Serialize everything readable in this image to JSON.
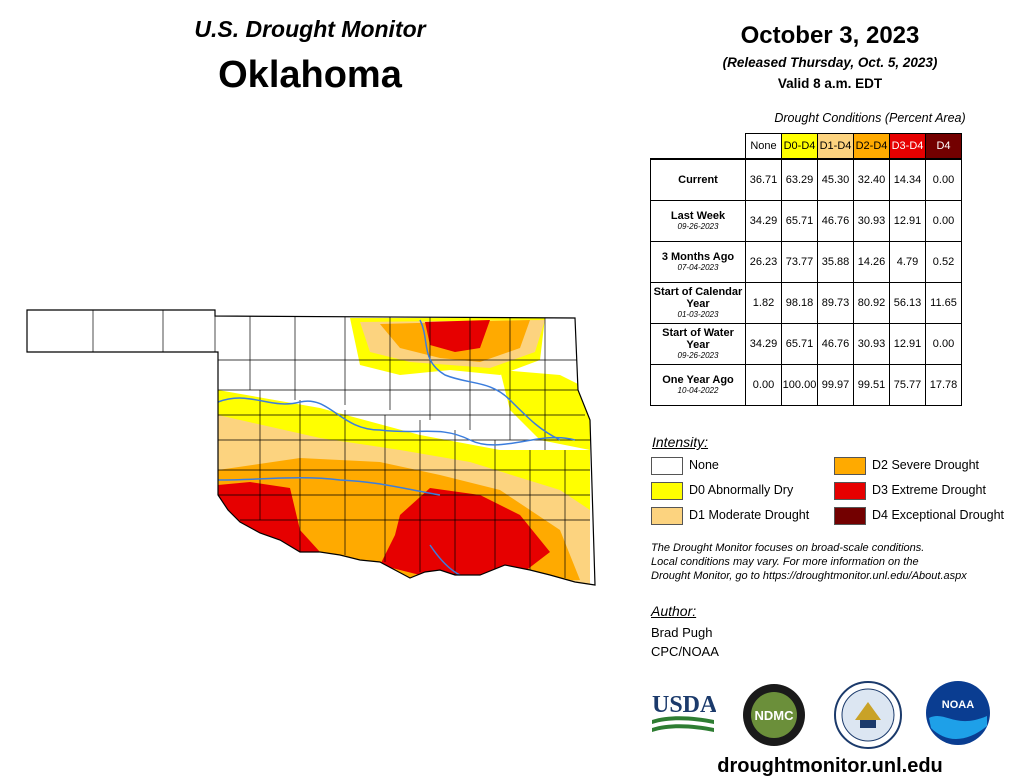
{
  "header": {
    "product": "U.S. Drought Monitor",
    "state": "Oklahoma",
    "date": "October 3, 2023",
    "released": "(Released Thursday, Oct. 5, 2023)",
    "valid": "Valid 8 a.m. EDT"
  },
  "table": {
    "caption": "Drought Conditions (Percent Area)",
    "columns": [
      {
        "label": "None",
        "color": "#ffffff",
        "text_color": "#000000"
      },
      {
        "label": "D0-D4",
        "color": "#ffff00",
        "text_color": "#000000"
      },
      {
        "label": "D1-D4",
        "color": "#fcd37f",
        "text_color": "#000000"
      },
      {
        "label": "D2-D4",
        "color": "#ffaa00",
        "text_color": "#000000"
      },
      {
        "label": "D3-D4",
        "color": "#e60000",
        "text_color": "#ffffff"
      },
      {
        "label": "D4",
        "color": "#730000",
        "text_color": "#ffffff"
      }
    ],
    "rows": [
      {
        "label": "Current",
        "sub": "",
        "values": [
          "36.71",
          "63.29",
          "45.30",
          "32.40",
          "14.34",
          "0.00"
        ]
      },
      {
        "label": "Last Week",
        "sub": "09-26-2023",
        "values": [
          "34.29",
          "65.71",
          "46.76",
          "30.93",
          "12.91",
          "0.00"
        ]
      },
      {
        "label": "3 Months Ago",
        "sub": "07-04-2023",
        "values": [
          "26.23",
          "73.77",
          "35.88",
          "14.26",
          "4.79",
          "0.52"
        ]
      },
      {
        "label": "Start of Calendar Year",
        "sub": "01-03-2023",
        "values": [
          "1.82",
          "98.18",
          "89.73",
          "80.92",
          "56.13",
          "11.65"
        ]
      },
      {
        "label": "Start of Water Year",
        "sub": "09-26-2023",
        "values": [
          "34.29",
          "65.71",
          "46.76",
          "30.93",
          "12.91",
          "0.00"
        ]
      },
      {
        "label": "One Year Ago",
        "sub": "10-04-2022",
        "values": [
          "0.00",
          "100.00",
          "99.97",
          "99.51",
          "75.77",
          "17.78"
        ]
      }
    ]
  },
  "legend": {
    "title": "Intensity:",
    "items": [
      {
        "label": "None",
        "color": "#ffffff"
      },
      {
        "label": "D0 Abnormally Dry",
        "color": "#ffff00"
      },
      {
        "label": "D1 Moderate Drought",
        "color": "#fcd37f"
      },
      {
        "label": "D2 Severe Drought",
        "color": "#ffaa00"
      },
      {
        "label": "D3 Extreme Drought",
        "color": "#e60000"
      },
      {
        "label": "D4 Exceptional Drought",
        "color": "#730000"
      }
    ]
  },
  "note": {
    "line1": "The Drought Monitor focuses on broad-scale conditions.",
    "line2": "Local conditions may vary. For more information on the",
    "line3": "Drought Monitor, go to https://droughtmonitor.unl.edu/About.aspx"
  },
  "author": {
    "title": "Author:",
    "name": "Brad Pugh",
    "org": "CPC/NOAA"
  },
  "logos": {
    "usda": "USDA",
    "ndmc": "NDMC",
    "noaa": "NOAA"
  },
  "footer": {
    "url": "droughtmonitor.unl.edu"
  }
}
